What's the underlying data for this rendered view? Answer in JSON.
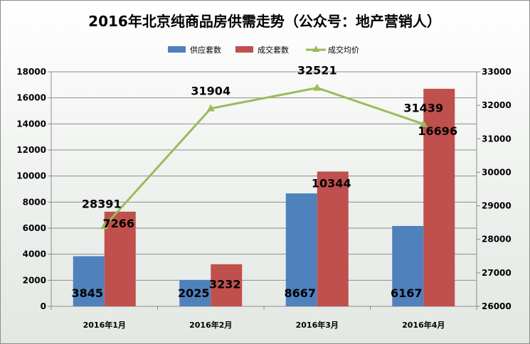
{
  "chart_data": {
    "type": "bar+line",
    "title": "2016年北京纯商品房供需走势（公众号：地产营销人）",
    "categories": [
      "2016年1月",
      "2016年2月",
      "2016年3月",
      "2016年4月"
    ],
    "series": [
      {
        "name": "供应套数",
        "type": "bar",
        "axis": "left",
        "color": "#4f81bd",
        "values": [
          3845,
          2025,
          8667,
          6167
        ]
      },
      {
        "name": "成交套数",
        "type": "bar",
        "axis": "left",
        "color": "#c0504d",
        "values": [
          7266,
          3232,
          10344,
          16696
        ]
      },
      {
        "name": "成交均价",
        "type": "line",
        "axis": "right",
        "color": "#9bbb59",
        "values": [
          28391,
          31904,
          32521,
          31439
        ]
      }
    ],
    "y_left": {
      "min": 0,
      "max": 18000,
      "step": 2000
    },
    "y_right": {
      "min": 26000,
      "max": 33000,
      "step": 1000
    },
    "grid": true,
    "legend_position": "top"
  }
}
